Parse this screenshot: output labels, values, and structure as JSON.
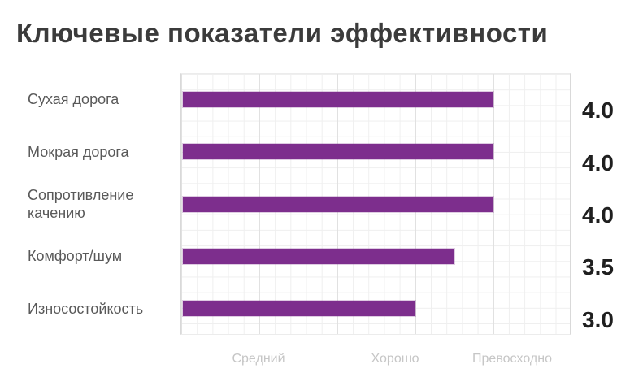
{
  "title": "Ключевые показатели эффективности",
  "chart_data": {
    "type": "bar",
    "orientation": "horizontal",
    "title": "Ключевые показатели эффективности",
    "categories": [
      "Сухая дорога",
      "Мокрая дорога",
      "Сопротивление качению",
      "Комфорт/шум",
      "Износостойкость"
    ],
    "values": [
      4.0,
      4.0,
      4.0,
      3.5,
      3.0
    ],
    "value_labels": [
      "4.0",
      "4.0",
      "4.0",
      "3.5",
      "3.0"
    ],
    "xlim": [
      0,
      5
    ],
    "grid": "on",
    "legend": "none",
    "x_sections": [
      {
        "label": "Средний",
        "from": 0,
        "to": 2.0
      },
      {
        "label": "Хорошо",
        "from": 2.0,
        "to": 3.5
      },
      {
        "label": "Превосходно",
        "from": 3.5,
        "to": 5.0
      }
    ]
  },
  "colors": {
    "bar": "#7d2e8d",
    "title": "#3b3b3b",
    "category": "#595959",
    "value": "#1f1f1f",
    "axis_label": "#c6c6c6",
    "grid_minor": "#efefef",
    "grid_major": "#e1e1e1"
  }
}
